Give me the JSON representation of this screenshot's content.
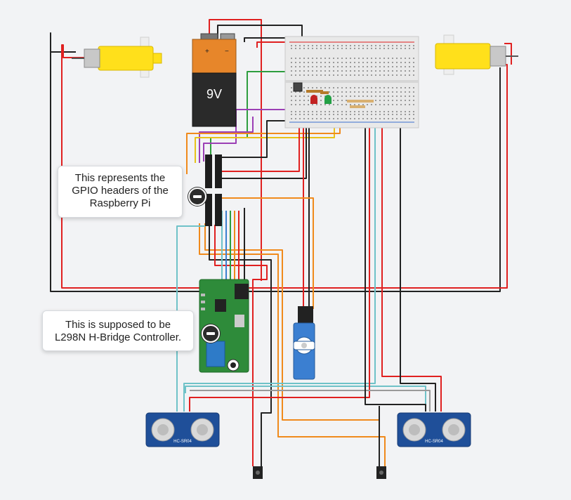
{
  "battery": {
    "label": "9V",
    "plus": "+",
    "minus": "−"
  },
  "sensor_left": {
    "label": "HC-SR04"
  },
  "sensor_right": {
    "label": "HC-SR04"
  },
  "callouts": {
    "gpio": "This represents the\nGPIO headers of the\nRaspberry Pi",
    "hbridge": "This is supposed to be\nL298N H-Bridge Controller."
  },
  "colors": {
    "background": "#f2f3f5",
    "wire_red": "#e02020",
    "wire_black": "#222222",
    "wire_orange": "#f08a1c",
    "wire_yellow": "#e8c21a",
    "wire_purple": "#9b3fb5",
    "wire_green": "#2e9e3e",
    "wire_cyan": "#6fc2c8",
    "wire_gray": "#9a9a9a",
    "motor_yellow": "#ffe01b",
    "pcb_green": "#2e8b3a",
    "sensor_blue": "#1f4f99",
    "servo_blue": "#3b7fd1"
  },
  "icons": [
    "collapse-minus-icon"
  ]
}
